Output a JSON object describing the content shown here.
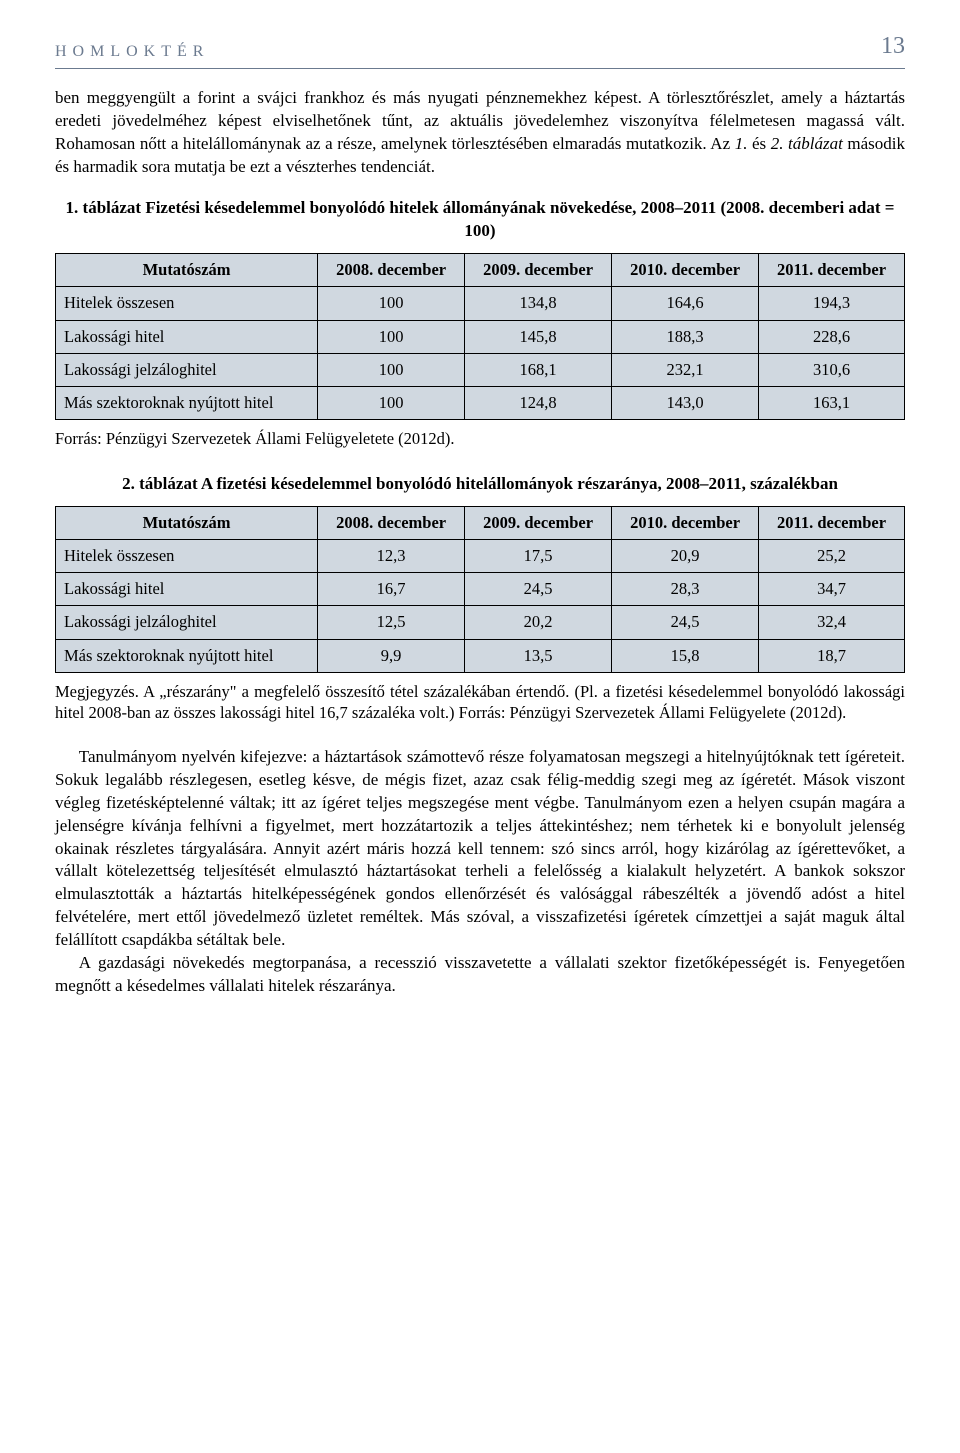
{
  "header": {
    "section": "HOMLOKTÉR",
    "page": "13"
  },
  "para1": "ben meggyengült a forint a svájci frankhoz és más nyugati pénznemekhez képest. A törlesztőrészlet, amely a háztartás eredeti jövedelméhez képest elviselhetőnek tűnt, az aktuális jövedelemhez viszonyítva félelmetesen magassá vált. Rohamosan nőtt a hitelállománynak az a része, amelynek törlesztésében elmaradás mutatkozik. Az 1. és 2. táblázat második és harmadik sora mutatja be ezt a vészterhes tendenciát.",
  "table1": {
    "caption": "1. táblázat Fizetési késedelemmel bonyolódó hitelek állományának növekedése, 2008–2011 (2008. decemberi adat = 100)",
    "columns": [
      "Mutatószám",
      "2008. december",
      "2009. december",
      "2010. december",
      "2011. december"
    ],
    "rows": [
      [
        "Hitelek összesen",
        "100",
        "134,8",
        "164,6",
        "194,3"
      ],
      [
        "Lakossági hitel",
        "100",
        "145,8",
        "188,3",
        "228,6"
      ],
      [
        "Lakossági jelzáloghitel",
        "100",
        "168,1",
        "232,1",
        "310,6"
      ],
      [
        "Más szektoroknak nyújtott hitel",
        "100",
        "124,8",
        "143,0",
        "163,1"
      ]
    ],
    "source": "Forrás: Pénzügyi Szervezetek Állami Felügyeletete (2012d)."
  },
  "table2": {
    "caption": "2. táblázat A fizetési késedelemmel bonyolódó hitelállományok részaránya, 2008–2011, százalékban",
    "columns": [
      "Mutatószám",
      "2008. december",
      "2009. december",
      "2010. december",
      "2011. december"
    ],
    "rows": [
      [
        "Hitelek összesen",
        "12,3",
        "17,5",
        "20,9",
        "25,2"
      ],
      [
        "Lakossági hitel",
        "16,7",
        "24,5",
        "28,3",
        "34,7"
      ],
      [
        "Lakossági jelzáloghitel",
        "12,5",
        "20,2",
        "24,5",
        "32,4"
      ],
      [
        "Más szektoroknak nyújtott hitel",
        "9,9",
        "13,5",
        "15,8",
        "18,7"
      ]
    ],
    "note": "Megjegyzés. A „részarány\" a megfelelő összesítő tétel százalékában értendő. (Pl. a fizetési késedelemmel bonyolódó lakossági hitel 2008-ban az összes lakossági hitel 16,7 százaléka volt.) Forrás: Pénzügyi Szervezetek Állami Felügyelete (2012d)."
  },
  "body": {
    "p1": "Tanulmányom nyelvén kifejezve: a háztartások számottevő része folyamatosan megszegi a hitelnyújtóknak tett ígéreteit. Sokuk legalább részlegesen, esetleg késve, de mégis fizet, azaz csak félig-meddig szegi meg az ígéretét. Mások viszont végleg fizetésképtelenné váltak; itt az ígéret teljes megszegése ment végbe. Tanulmányom ezen a helyen csupán magára a jelenségre kívánja felhívni a figyelmet, mert hozzátartozik a teljes áttekintéshez; nem térhetek ki e bonyolult jelenség okainak részletes tárgyalására. Annyit azért máris hozzá kell tennem: szó sincs arról, hogy kizárólag az ígérettevőket, a vállalt kötelezettség teljesítését elmulasztó háztartásokat terheli a felelősség a kialakult helyzetért. A bankok sokszor elmulasztották a háztartás hitelképességének gondos ellenőrzését és valósággal rábeszélték a jövendő adóst a hitel felvételére, mert ettől jövedelmező üzletet reméltek. Más szóval, a visszafizetési ígéretek címzettjei a saját maguk által felállított csapdákba sétáltak bele.",
    "p2": "A gazdasági növekedés megtorpanása, a recesszió visszavetette a vállalati szektor fizetőképességét is. Fenyegetően megnőtt a késedelmes vállalati hitelek részaránya."
  },
  "styles": {
    "table_bg": "#d0d8e0",
    "border_color": "#000000",
    "header_line_color": "#6b7a8f"
  }
}
